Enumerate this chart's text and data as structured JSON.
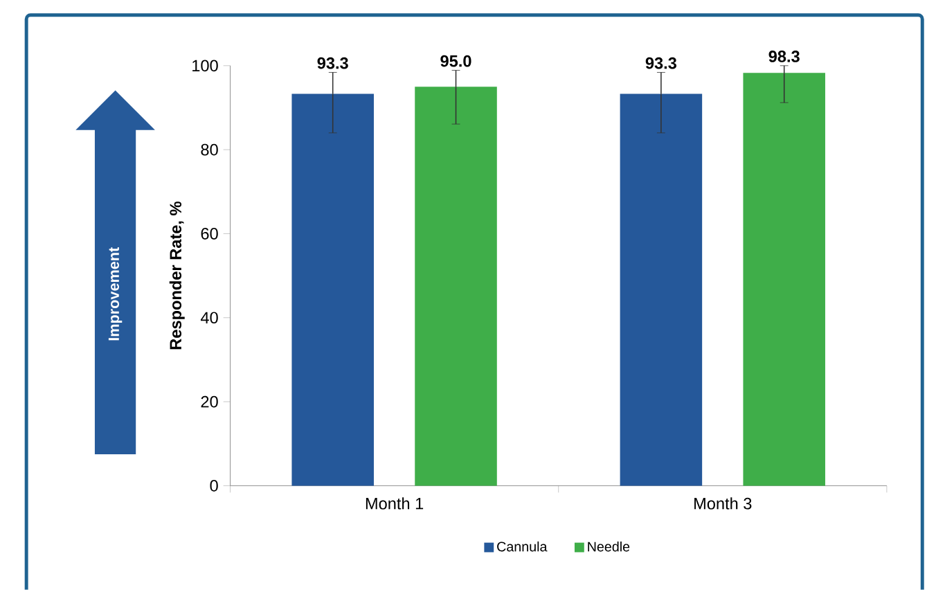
{
  "chart_data": {
    "type": "bar",
    "ylabel": "Responder Rate, %",
    "categories": [
      "Month 1",
      "Month 3"
    ],
    "series": [
      {
        "name": "Cannula",
        "color": "#25589a",
        "values": [
          93.3,
          93.3
        ],
        "value_labels": [
          "93.3",
          "93.3"
        ],
        "errors": [
          [
            84.0,
            98.4
          ],
          [
            84.0,
            98.4
          ]
        ]
      },
      {
        "name": "Needle",
        "color": "#3fae49",
        "values": [
          95.0,
          98.3
        ],
        "value_labels": [
          "95.0",
          "98.3"
        ],
        "errors": [
          [
            86.1,
            98.9
          ],
          [
            91.2,
            100.0
          ]
        ]
      }
    ],
    "ylim": [
      0,
      100
    ],
    "yticks": [
      0,
      20,
      40,
      60,
      80,
      100
    ],
    "legend": "bottom",
    "annotations": [
      "Improvement"
    ]
  }
}
